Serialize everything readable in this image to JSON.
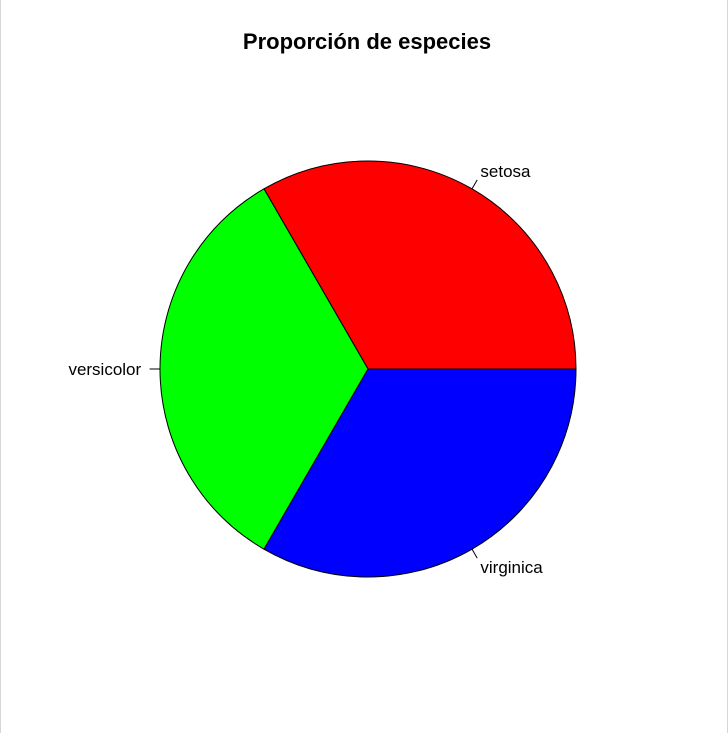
{
  "chart_data": {
    "type": "pie",
    "title": "Proporción de especies",
    "categories": [
      "setosa",
      "versicolor",
      "virginica"
    ],
    "values": [
      50,
      50,
      50
    ],
    "colors": [
      "#ff0000",
      "#00ff00",
      "#0000ff"
    ],
    "start_angle_deg": 0,
    "direction": "counterclockwise",
    "legend": "none"
  }
}
